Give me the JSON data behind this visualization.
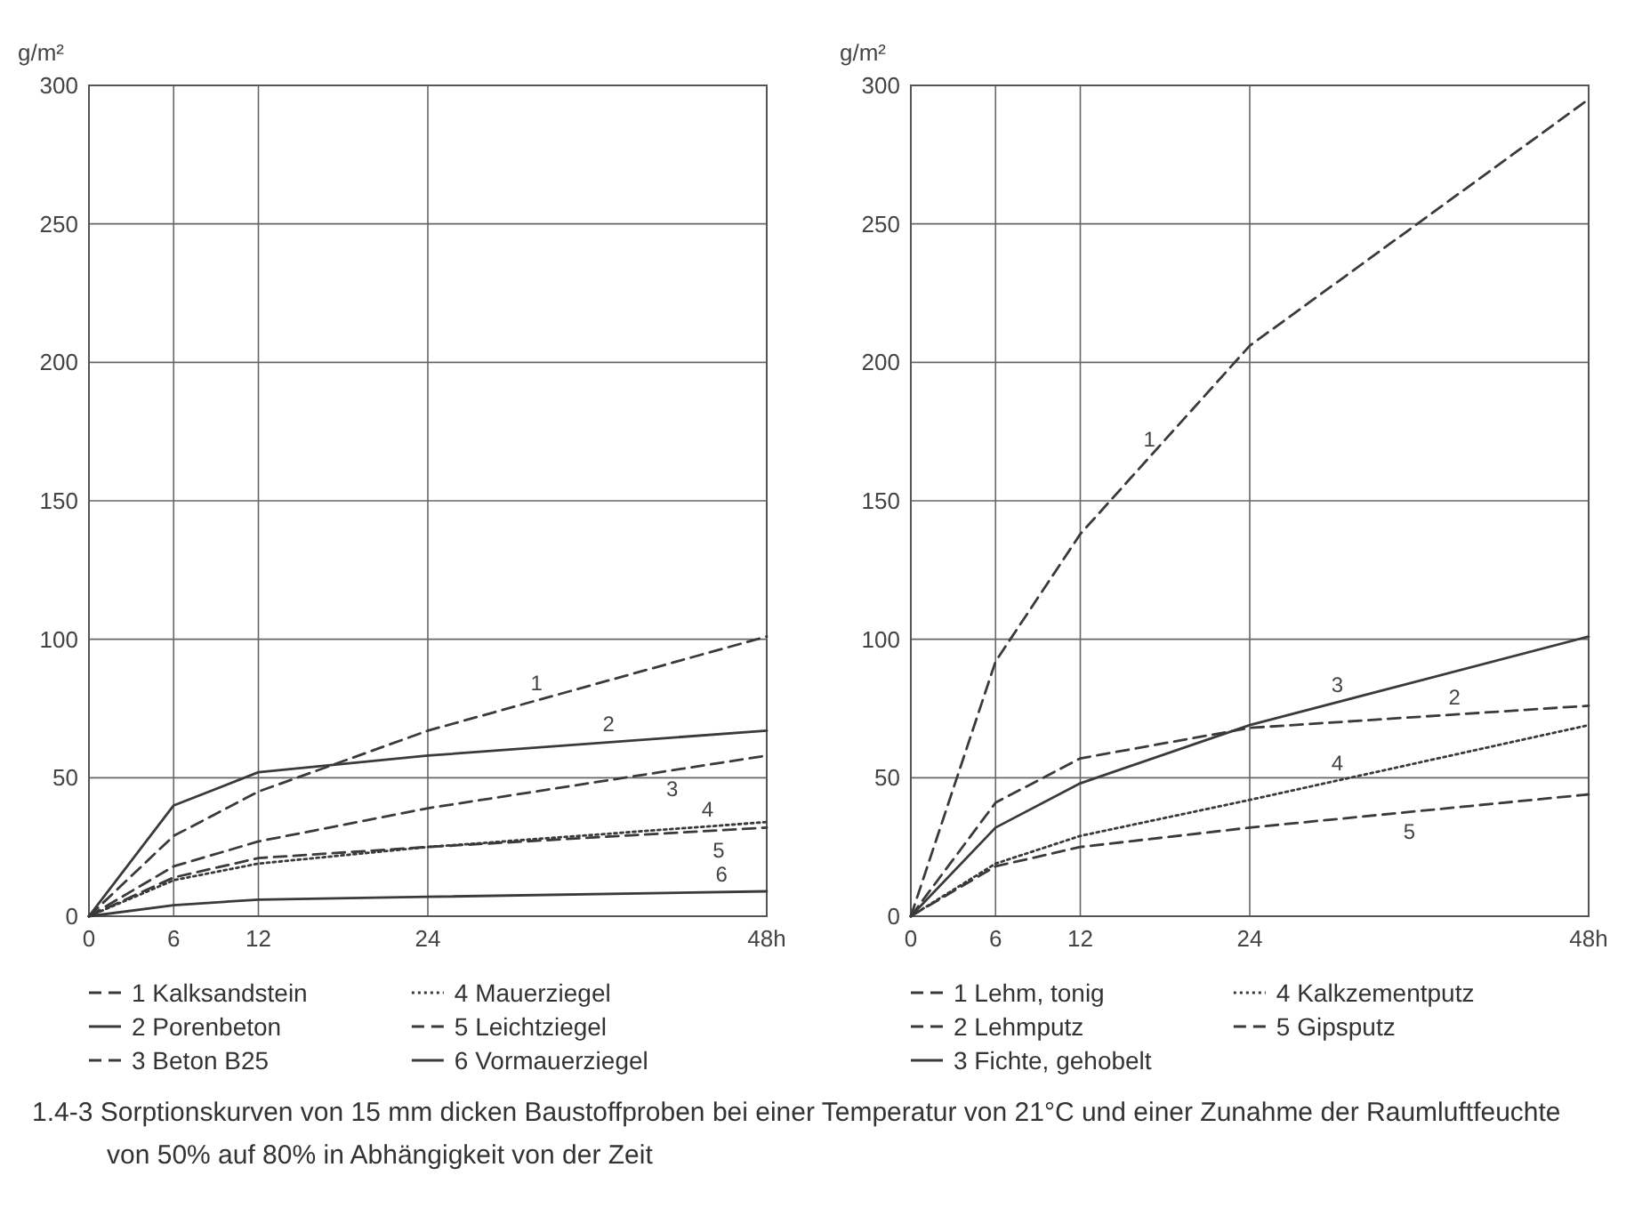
{
  "chart_data": [
    {
      "type": "line",
      "ylabel": "g/m²",
      "x": [
        0,
        6,
        12,
        24,
        48
      ],
      "xlim": [
        0,
        48
      ],
      "xticks": [
        0,
        6,
        12,
        24,
        {
          "value": 48,
          "label": "48h"
        }
      ],
      "ylim": [
        0,
        300
      ],
      "yticks": [
        0,
        50,
        100,
        150,
        200,
        250,
        300
      ],
      "grid": true,
      "legend": "bottom",
      "series": [
        {
          "name": "1 Kalksandstein",
          "color": "#3a3a3a",
          "line_style": "dashed",
          "values": [
            0,
            29,
            45,
            67,
            101
          ]
        },
        {
          "name": "2 Porenbeton",
          "color": "#3a3a3a",
          "line_style": "solid",
          "values": [
            0,
            40,
            52,
            58,
            67
          ]
        },
        {
          "name": "3 Beton B25",
          "color": "#3a3a3a",
          "line_style": "dashed",
          "values": [
            0,
            18,
            27,
            39,
            58
          ]
        },
        {
          "name": "4 Mauerziegel",
          "color": "#3a3a3a",
          "line_style": "dotted",
          "values": [
            0,
            13,
            19,
            25,
            34
          ]
        },
        {
          "name": "5 Leichtziegel",
          "color": "#3a3a3a",
          "line_style": "dashed",
          "values": [
            0,
            14,
            21,
            25,
            32
          ]
        },
        {
          "name": "6 Vormauerziegel",
          "color": "#3a3a3a",
          "line_style": "solid",
          "values": [
            0,
            4,
            6,
            7,
            9
          ]
        }
      ],
      "annotations": [
        {
          "text": "1",
          "x": 31.7,
          "y": 78
        },
        {
          "text": "2",
          "x": 36.8,
          "y": 63
        },
        {
          "text": "3",
          "x": 41.3,
          "y": 53
        },
        {
          "text": "4",
          "x": 43.8,
          "y": 32.4
        },
        {
          "text": "5",
          "x": 44.6,
          "y": 31
        },
        {
          "text": "6",
          "x": 44.8,
          "y": 8.7
        },
        "1.4-3 Sorptionskurven von 15 mm dicken Baustoffproben bei einer Temperatur von 21°C und einer Zunahme der Raumluftfeuchte von 50% auf 80% in Abhängigkeit von der Zeit"
      ]
    },
    {
      "type": "line",
      "ylabel": "g/m²",
      "x": [
        0,
        6,
        12,
        24,
        48
      ],
      "xlim": [
        0,
        48
      ],
      "xticks": [
        0,
        6,
        12,
        24,
        {
          "value": 48,
          "label": "48h"
        }
      ],
      "ylim": [
        0,
        300
      ],
      "yticks": [
        0,
        50,
        100,
        150,
        200,
        250,
        300
      ],
      "grid": true,
      "legend": "bottom",
      "series": [
        {
          "name": "1 Lehm, tonig",
          "color": "#3a3a3a",
          "line_style": "dashed",
          "values": [
            0,
            92,
            138,
            206,
            295
          ]
        },
        {
          "name": "2 Lehmputz",
          "color": "#3a3a3a",
          "line_style": "dashed",
          "values": [
            0,
            41,
            57,
            68,
            76
          ]
        },
        {
          "name": "3 Fichte, gehobelt",
          "color": "#3a3a3a",
          "line_style": "solid",
          "values": [
            0,
            32,
            48,
            69,
            101
          ]
        },
        {
          "name": "4 Kalkzementputz",
          "color": "#3a3a3a",
          "line_style": "dotted",
          "values": [
            0,
            19,
            29,
            42,
            69
          ]
        },
        {
          "name": "5 Gipsputz",
          "color": "#3a3a3a",
          "line_style": "dashed",
          "values": [
            0,
            18,
            25,
            32,
            44
          ]
        }
      ],
      "annotations": [
        {
          "text": "1",
          "x": 16.9,
          "y": 166
        },
        {
          "text": "2",
          "x": 38.5,
          "y": 72.8
        },
        {
          "text": "3",
          "x": 30.2,
          "y": 77.3
        },
        {
          "text": "4",
          "x": 30.2,
          "y": 49
        },
        {
          "text": "5",
          "x": 35.3,
          "y": 37.7
        }
      ]
    }
  ]
}
